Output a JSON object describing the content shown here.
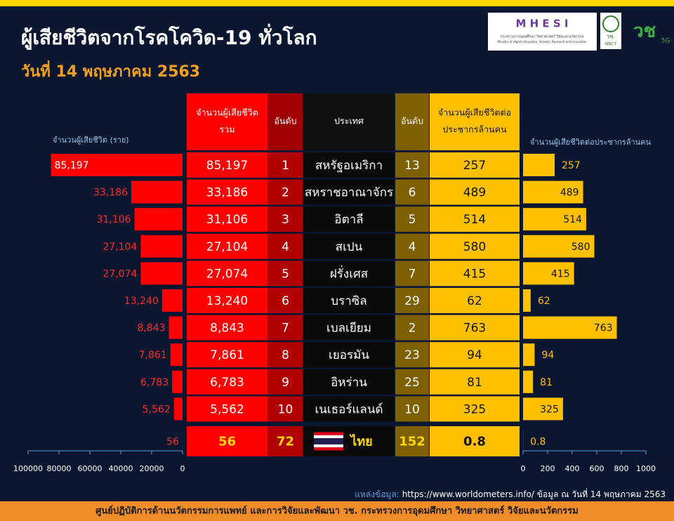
{
  "header": {
    "title": "ผู้เสียชีวิตจากโรคโควิด-19 ทั่วโลก",
    "subtitle": "วันที่ 14 พฤษภาคม 2563",
    "logo": {
      "name": "M H E S I",
      "ministry_th": "กระทรวงการอุดมศึกษา วิทยาศาสตร์ วิจัยและนวัตกรรม",
      "ministry_en": "Ministry of Higher Education, Science, Research and Innovation",
      "seal": "วช.",
      "seal_en": "NRCT",
      "mark": "วช",
      "mark_suffix": "5G"
    }
  },
  "table": {
    "columns": [
      [
        "จำนวนผู้เสียชีวิต",
        "รวม"
      ],
      [
        "อันดับ"
      ],
      [
        "ประเทศ"
      ],
      [
        "อันดับ"
      ],
      [
        "จำนวนผู้เสียชีวิตต่อ",
        "ประชากรล้านคน"
      ]
    ],
    "rows": [
      [
        "85,197",
        1,
        "สหรัฐอเมริกา",
        13,
        257
      ],
      [
        "33,186",
        2,
        "สหราชอาณาจักร",
        6,
        489
      ],
      [
        "31,106",
        3,
        "อิตาลี",
        5,
        514
      ],
      [
        "27,104",
        4,
        "สเปน",
        4,
        580
      ],
      [
        "27,074",
        5,
        "ฝรั่งเศส",
        7,
        415
      ],
      [
        "13,240",
        6,
        "บราซิล",
        29,
        62
      ],
      [
        "8,843",
        7,
        "เบลเยียม",
        2,
        763
      ],
      [
        "7,861",
        8,
        "เยอรมัน",
        23,
        94
      ],
      [
        "6,783",
        9,
        "อิหร่าน",
        25,
        81
      ],
      [
        "5,562",
        10,
        "เนเธอร์แลนด์",
        10,
        325
      ],
      [
        "56",
        72,
        "ไทย",
        152,
        0.8
      ]
    ]
  },
  "chart_data": [
    {
      "type": "bar",
      "orientation": "horizontal",
      "axis_label": "จำนวนผู้เสียชีวิต (ราย)",
      "color": "#ff0000",
      "values": [
        85197,
        33186,
        31106,
        27104,
        27074,
        13240,
        8843,
        7861,
        6783,
        5562,
        56
      ],
      "value_labels": [
        "85,197",
        "33,186",
        "31,106",
        "27,104",
        "27,074",
        "13,240",
        "8,843",
        "7,861",
        "6,783",
        "5,562",
        "56"
      ],
      "xlim": [
        100000,
        0
      ],
      "xticks": [
        100000,
        80000,
        60000,
        40000,
        20000,
        0
      ]
    },
    {
      "type": "bar",
      "orientation": "horizontal",
      "axis_label": "จำนวนผู้เสียชีวิตต่อประชากรล้านคน",
      "color": "#ffc000",
      "values": [
        257,
        489,
        514,
        580,
        415,
        62,
        763,
        94,
        81,
        325,
        0.8
      ],
      "xlim": [
        0,
        1000
      ],
      "xticks": [
        0,
        200,
        400,
        600,
        800,
        1000
      ]
    }
  ],
  "footer": {
    "source_label": "แหล่งข้อมูล:",
    "source_url": "https://www.worldometers.info/",
    "source_note": "ข้อมูล ณ วันที่ 14 พฤษภาคม 2563",
    "banner": "ศูนย์ปฏิบัติการด้านนวัตกรรมการแพทย์ และการวิจัยและพัฒนา วช.  กระทรวงการอุดมศึกษา วิทยาศาสตร์ วิจัยและนวัตกรรม"
  }
}
